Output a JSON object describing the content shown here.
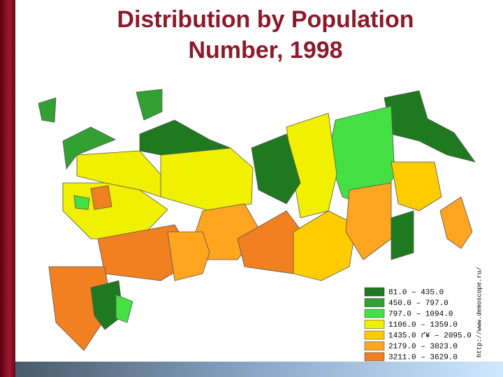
{
  "header": {
    "title": "Distribution by Population Number, 1998"
  },
  "legend": {
    "items": [
      {
        "label": "81.0 – 435.0",
        "color": "#1f7a1f"
      },
      {
        "label": "450.0 – 797.0",
        "color": "#33a033"
      },
      {
        "label": "797.0 – 1094.0",
        "color": "#44e044"
      },
      {
        "label": "1106.0 – 1359.0",
        "color": "#f0f000"
      },
      {
        "label": "1435.0 ґ¥ – 2095.0",
        "color": "#ffcc00"
      },
      {
        "label": "2179.0 – 3023.0",
        "color": "#ffa520"
      },
      {
        "label": "3211.0 – 3629.0",
        "color": "#f08020"
      }
    ]
  },
  "source": "http://www.demoscope.ru/"
}
